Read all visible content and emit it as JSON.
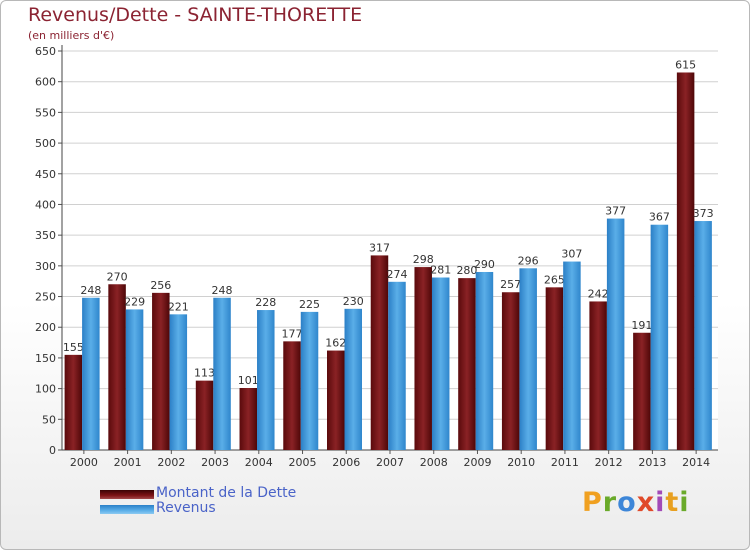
{
  "header": {
    "title": "Revenus/Dette - SAINTE-THORETTE",
    "subtitle": "(en milliers d'€)"
  },
  "chart_data": {
    "type": "bar",
    "title": "Revenus/Dette - SAINTE-THORETTE",
    "ylabel": "(en milliers d'€)",
    "xlabel": "",
    "ylim": [
      0,
      650
    ],
    "ytick_step": 50,
    "grid": true,
    "categories": [
      "2000",
      "2001",
      "2002",
      "2003",
      "2004",
      "2005",
      "2006",
      "2007",
      "2008",
      "2009",
      "2010",
      "2011",
      "2012",
      "2013",
      "2014"
    ],
    "series": [
      {
        "name": "Montant de la Dette",
        "color": "#7d1416",
        "values": [
          155,
          270,
          256,
          113,
          101,
          177,
          162,
          317,
          298,
          280,
          257,
          265,
          242,
          191,
          615
        ]
      },
      {
        "name": "Revenus",
        "color": "#4a9fe0",
        "values": [
          248,
          229,
          221,
          248,
          228,
          225,
          230,
          274,
          281,
          290,
          296,
          307,
          377,
          367,
          373
        ]
      }
    ],
    "legend": [
      "Montant de la Dette",
      "Revenus"
    ],
    "legend_position": "bottom-left"
  },
  "logo": {
    "text": "Proxiti",
    "letters": [
      "P",
      "r",
      "o",
      "x",
      "i",
      "t",
      "i"
    ]
  }
}
